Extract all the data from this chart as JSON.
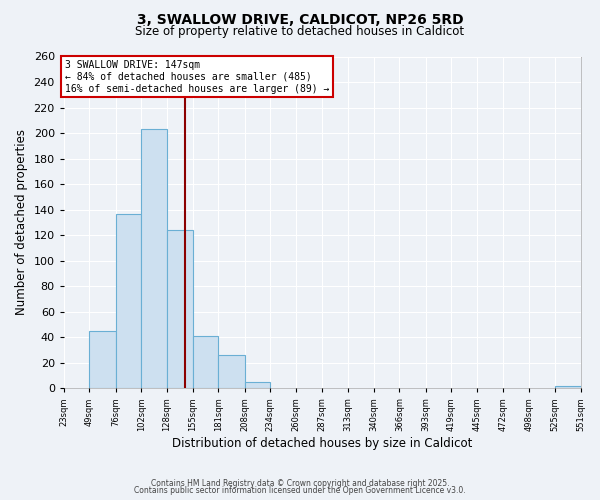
{
  "title": "3, SWALLOW DRIVE, CALDICOT, NP26 5RD",
  "subtitle": "Size of property relative to detached houses in Caldicot",
  "xlabel": "Distribution of detached houses by size in Caldicot",
  "ylabel": "Number of detached properties",
  "bar_color": "#cde0f0",
  "bar_edge_color": "#6aafd4",
  "background_color": "#eef2f7",
  "grid_color": "#ffffff",
  "bin_edges": [
    23,
    49,
    76,
    102,
    128,
    155,
    181,
    208,
    234,
    260,
    287,
    313,
    340,
    366,
    393,
    419,
    445,
    472,
    498,
    525,
    551
  ],
  "bin_labels": [
    "23sqm",
    "49sqm",
    "76sqm",
    "102sqm",
    "128sqm",
    "155sqm",
    "181sqm",
    "208sqm",
    "234sqm",
    "260sqm",
    "287sqm",
    "313sqm",
    "340sqm",
    "366sqm",
    "393sqm",
    "419sqm",
    "445sqm",
    "472sqm",
    "498sqm",
    "525sqm",
    "551sqm"
  ],
  "counts": [
    0,
    45,
    137,
    203,
    124,
    41,
    26,
    5,
    0,
    0,
    0,
    0,
    0,
    0,
    0,
    0,
    0,
    0,
    0,
    2
  ],
  "vline_x": 147,
  "vline_color": "#8b0000",
  "annotation_title": "3 SWALLOW DRIVE: 147sqm",
  "annotation_line1": "← 84% of detached houses are smaller (485)",
  "annotation_line2": "16% of semi-detached houses are larger (89) →",
  "annotation_box_color": "#ffffff",
  "annotation_box_edge": "#cc0000",
  "ylim": [
    0,
    260
  ],
  "yticks": [
    0,
    20,
    40,
    60,
    80,
    100,
    120,
    140,
    160,
    180,
    200,
    220,
    240,
    260
  ],
  "footer1": "Contains HM Land Registry data © Crown copyright and database right 2025.",
  "footer2": "Contains public sector information licensed under the Open Government Licence v3.0."
}
